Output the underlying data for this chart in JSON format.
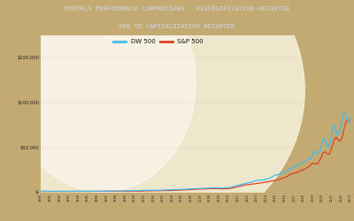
{
  "title_line1": "MONTHLY PERFORMANCE COMPARISONS:  DIVERSIFICATION-WEIGHTED",
  "title_line2": "500 TO CAPTIALIZATION WEIGHTED",
  "title_bg": "#111111",
  "title_color": "#cccccc",
  "bg_color_outer": "#c2aa72",
  "bg_color_inner": "#f5f0e0",
  "dw_color": "#44bbee",
  "sp_color": "#dd4422",
  "legend_dw": "DW 500",
  "legend_sp": "S&P 500",
  "ylim_max": 175000,
  "ytick_vals": [
    0,
    50000,
    100000,
    150000
  ],
  "ytick_labels": [
    "$-",
    "$50,000",
    "$100,000",
    "$150,000"
  ],
  "n_points": 396
}
